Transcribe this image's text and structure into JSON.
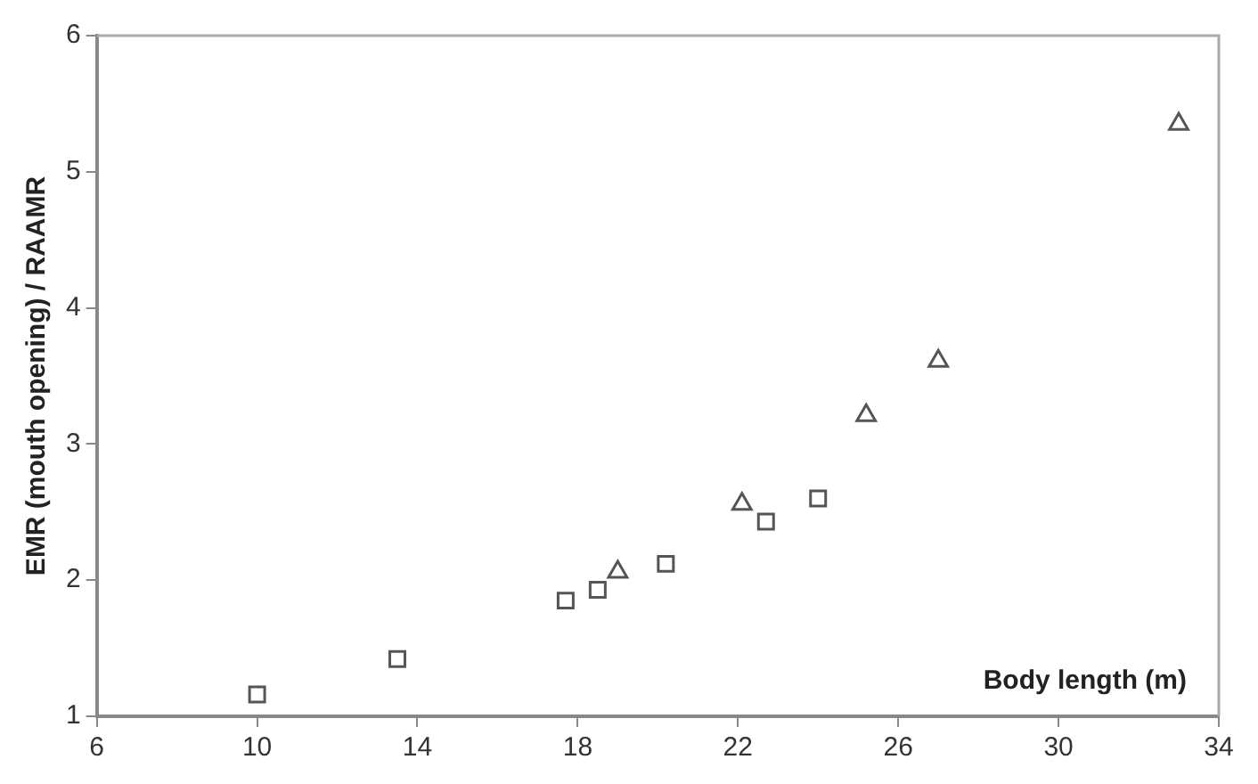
{
  "chart_data": {
    "type": "scatter",
    "xlabel": "Body length (m)",
    "ylabel": "EMR (mouth opening) / RAAMR",
    "xlim": [
      6,
      34
    ],
    "xticks": [
      6,
      10,
      14,
      18,
      22,
      26,
      30,
      34
    ],
    "ylim": [
      1,
      6
    ],
    "yticks": [
      1,
      2,
      3,
      4,
      5,
      6
    ],
    "grid": false,
    "legend": false,
    "series": [
      {
        "color": "#555555",
        "marker": "square",
        "x": [
          10,
          13.5,
          17.7,
          18.5,
          20.2,
          22.7,
          24.0
        ],
        "values": [
          1.16,
          1.42,
          1.85,
          1.93,
          2.12,
          2.43,
          2.6
        ]
      },
      {
        "color": "#555555",
        "marker": "triangle",
        "x": [
          19.0,
          22.1,
          25.2,
          27.0,
          33.0
        ],
        "values": [
          2.06,
          2.56,
          3.21,
          3.61,
          5.35
        ]
      }
    ]
  }
}
